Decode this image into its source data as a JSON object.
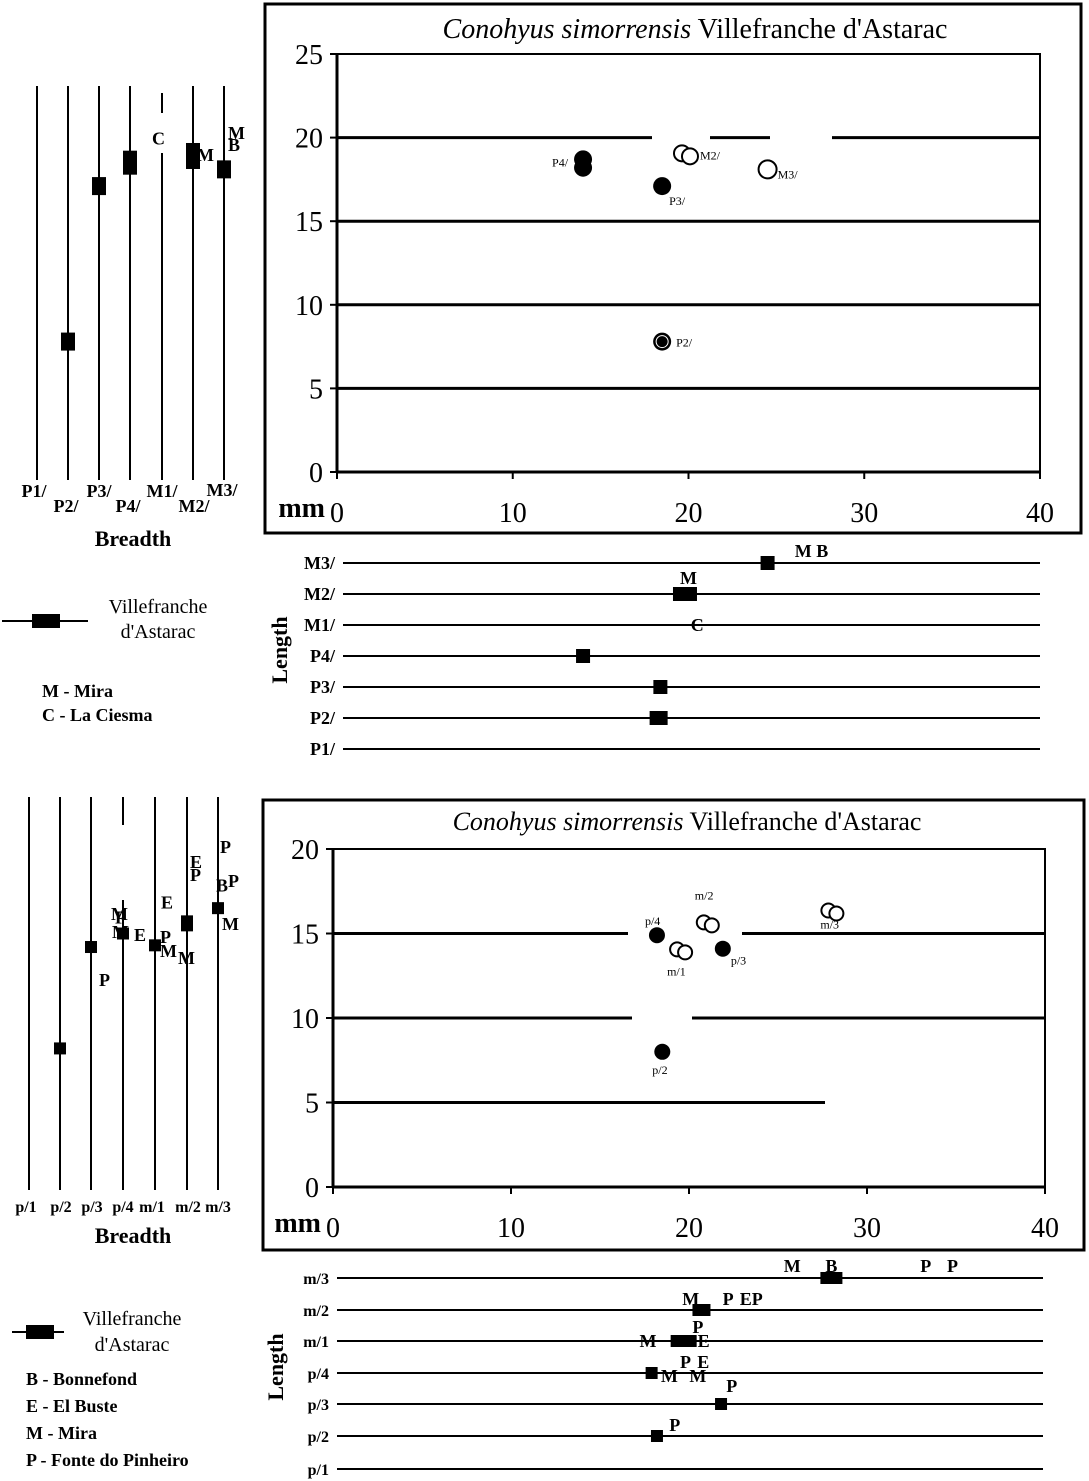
{
  "chart_data": [
    {
      "type": "scatter",
      "title_italic": "Conohyus simorrensis",
      "title_rest": "Villefranche d'Astarac",
      "unit_label": "mm",
      "xlim": [
        0,
        40
      ],
      "ylim": [
        0,
        25
      ],
      "x_ticks": [
        0,
        10,
        20,
        30,
        40
      ],
      "y_ticks": [
        0,
        5,
        10,
        15,
        20,
        25
      ],
      "grid_y": [
        5,
        10,
        15,
        20
      ],
      "points": [
        {
          "label": "P4/",
          "x": 14,
          "y": 18.7,
          "style": "filled"
        },
        {
          "label": "",
          "x": 14,
          "y": 18.2,
          "style": "filled"
        },
        {
          "label": "P3/",
          "x": 18.5,
          "y": 17.1,
          "style": "filled"
        },
        {
          "label": "P2/",
          "x": 18.5,
          "y": 7.8,
          "style": "filled-ring"
        },
        {
          "label": "M2/",
          "x": 19.8,
          "y": 19,
          "style": "open-double"
        },
        {
          "label": "M3/",
          "x": 24.5,
          "y": 18.1,
          "style": "open"
        }
      ]
    },
    {
      "type": "range",
      "axis_label": "Breadth",
      "ylim": [
        0,
        25
      ],
      "categories": [
        "P1/",
        "P2/",
        "P3/",
        "P4/",
        "M1/",
        "M2/",
        "M3/"
      ],
      "values": [
        null,
        7.8,
        17.1,
        18.5,
        null,
        18.9,
        18.1
      ],
      "annotations": [
        {
          "category": "M1/",
          "text": "C",
          "y": 20.0
        },
        {
          "category": "M2/",
          "text": "M",
          "y": 19.5
        },
        {
          "category": "M3/",
          "text": "M",
          "y": 20.5
        },
        {
          "category": "M3/",
          "text": "B",
          "y": 19.8
        }
      ]
    },
    {
      "type": "range",
      "axis_label": "Length",
      "xlim": [
        0,
        40
      ],
      "categories": [
        "M3/",
        "M2/",
        "M1/",
        "P4/",
        "P3/",
        "P2/",
        "P1/"
      ],
      "values": [
        24.5,
        19.8,
        null,
        14,
        18.4,
        18.3,
        null
      ],
      "annotations": [
        {
          "category": "M3/",
          "text": "M B",
          "x": 27
        },
        {
          "category": "M2/",
          "text": "M",
          "x": 20
        },
        {
          "category": "M1/",
          "text": "C",
          "x": 20.5
        }
      ]
    },
    {
      "type": "scatter",
      "title_italic": "Conohyus simorrensis",
      "title_rest": "Villefranche d'Astarac",
      "unit_label": "mm",
      "xlim": [
        0,
        40
      ],
      "ylim": [
        0,
        20
      ],
      "x_ticks": [
        0,
        10,
        20,
        30,
        40
      ],
      "y_ticks": [
        0,
        5,
        10,
        15,
        20
      ],
      "grid_y": [
        5,
        10,
        15
      ],
      "points": [
        {
          "label": "p/4",
          "x": 18.2,
          "y": 14.9,
          "style": "filled"
        },
        {
          "label": "p/3",
          "x": 21.9,
          "y": 14.1,
          "style": "filled"
        },
        {
          "label": "p/2",
          "x": 18.5,
          "y": 8.0,
          "style": "filled"
        },
        {
          "label": "m/1",
          "x": 19.5,
          "y": 14.0,
          "style": "open-double"
        },
        {
          "label": "m/2",
          "x": 21,
          "y": 15.6,
          "style": "open-double"
        },
        {
          "label": "m/3",
          "x": 28,
          "y": 16.3,
          "style": "open-double"
        }
      ]
    },
    {
      "type": "range",
      "axis_label": "Breadth",
      "ylim": [
        0,
        20
      ],
      "categories": [
        "p/1",
        "p/2",
        "p/3",
        "p/4",
        "m/1",
        "m/2",
        "m/3"
      ],
      "values": [
        null,
        8.2,
        14.2,
        15.0,
        14.3,
        15.6,
        16.5
      ],
      "annotations": [
        {
          "category": "p/3",
          "text": "P",
          "y": 11.9
        },
        {
          "category": "p/4",
          "text": "M",
          "y": 15.8
        },
        {
          "category": "p/4",
          "text": "P",
          "y": 15.6
        },
        {
          "category": "p/4",
          "text": "M",
          "y": 15.1
        },
        {
          "category": "p/4",
          "text": "E",
          "y": 14.9
        },
        {
          "category": "m/1",
          "text": "E",
          "y": 16.0
        },
        {
          "category": "m/1",
          "text": "P",
          "y": 14.8
        },
        {
          "category": "m/1",
          "text": "M",
          "y": 14.2
        },
        {
          "category": "m/1",
          "text": "M",
          "y": 13.9
        },
        {
          "category": "m/2",
          "text": "E",
          "y": 18.4
        },
        {
          "category": "m/2",
          "text": "P",
          "y": 18.0
        },
        {
          "category": "m/3",
          "text": "P",
          "y": 20.0
        },
        {
          "category": "m/3",
          "text": "B",
          "y": 18.3
        },
        {
          "category": "m/3",
          "text": "P",
          "y": 18.4
        },
        {
          "category": "m/3",
          "text": "M",
          "y": 16.2
        }
      ]
    },
    {
      "type": "range",
      "axis_label": "Length",
      "xlim": [
        0,
        40
      ],
      "categories": [
        "m/3",
        "m/2",
        "m/1",
        "p/4",
        "p/3",
        "p/2",
        "p/1"
      ],
      "values": [
        28,
        20.7,
        19.7,
        17.9,
        21.8,
        18.2,
        null
      ],
      "annotations": [
        {
          "category": "m/3",
          "text": "M",
          "x": 25.8
        },
        {
          "category": "m/3",
          "text": "B",
          "x": 28
        },
        {
          "category": "m/3",
          "text": "P",
          "x": 33.3
        },
        {
          "category": "m/3",
          "text": "P",
          "x": 34.8
        },
        {
          "category": "m/2",
          "text": "M",
          "x": 20.1
        },
        {
          "category": "m/2",
          "text": "P",
          "x": 22.2
        },
        {
          "category": "m/2",
          "text": "EP",
          "x": 23.5
        },
        {
          "category": "m/1",
          "text": "P",
          "x": 20.5
        },
        {
          "category": "m/1",
          "text": "M",
          "x": 17.7
        },
        {
          "category": "m/1",
          "text": "E",
          "x": 20.6
        },
        {
          "category": "p/4",
          "text": "P",
          "x": 19.8
        },
        {
          "category": "p/4",
          "text": "E",
          "x": 20.8
        },
        {
          "category": "p/4",
          "text": "M",
          "x": 18.9
        },
        {
          "category": "p/4",
          "text": "M",
          "x": 20.5
        },
        {
          "category": "p/3",
          "text": "P",
          "x": 22.4
        },
        {
          "category": "p/2",
          "text": "P",
          "x": 19.2
        }
      ]
    }
  ],
  "legend_top": {
    "symbol_label_line1": "Villefranche",
    "symbol_label_line2": "d'Astarac",
    "entries": [
      "M - Mira",
      "C - La Ciesma"
    ]
  },
  "legend_bottom": {
    "symbol_label_line1": "Villefranche",
    "symbol_label_line2": "d'Astarac",
    "entries": [
      "B - Bonnefond",
      "E - El Buste",
      "M - Mira",
      "P - Fonte do Pinheiro"
    ]
  }
}
